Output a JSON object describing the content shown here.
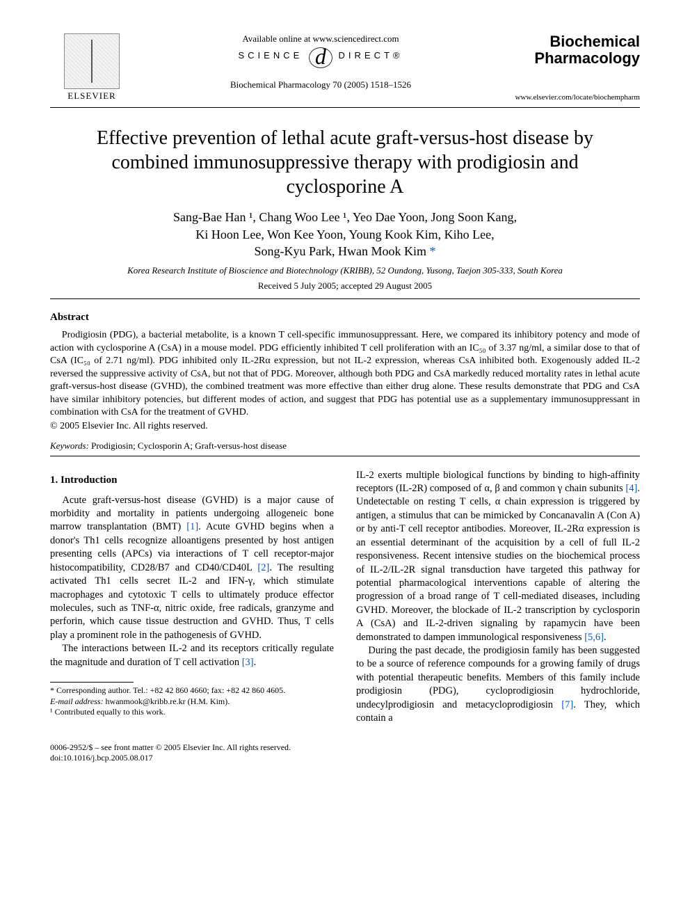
{
  "header": {
    "available_online": "Available online at www.sciencedirect.com",
    "sciencedirect_left": "SCIENCE",
    "sciencedirect_d": "d",
    "sciencedirect_right": "DIRECT®",
    "citation": "Biochemical Pharmacology 70 (2005) 1518–1526",
    "publisher_label": "ELSEVIER",
    "journal_line1": "Biochemical",
    "journal_line2": "Pharmacology",
    "journal_url": "www.elsevier.com/locate/biochempharm"
  },
  "title": "Effective prevention of lethal acute graft-versus-host disease by combined immunosuppressive therapy with prodigiosin and cyclosporine A",
  "authors": {
    "line1": "Sang-Bae Han ¹, Chang Woo Lee ¹, Yeo Dae Yoon, Jong Soon Kang,",
    "line2": "Ki Hoon Lee, Won Kee Yoon, Young Kook Kim, Kiho Lee,",
    "line3_prefix": "Song-Kyu Park, Hwan Mook Kim ",
    "corr_mark": "*"
  },
  "affiliation": "Korea Research Institute of Bioscience and Biotechnology (KRIBB), 52 Oundong, Yusong, Taejon 305-333, South Korea",
  "dates": "Received 5 July 2005; accepted 29 August 2005",
  "abstract_heading": "Abstract",
  "abstract_text": "Prodigiosin (PDG), a bacterial metabolite, is a known T cell-specific immunosuppressant. Here, we compared its inhibitory potency and mode of action with cyclosporine A (CsA) in a mouse model. PDG efficiently inhibited T cell proliferation with an IC₅₀ of 3.37 ng/ml, a similar dose to that of CsA (IC₅₀ of 2.71 ng/ml). PDG inhibited only IL-2Rα expression, but not IL-2 expression, whereas CsA inhibited both. Exogenously added IL-2 reversed the suppressive activity of CsA, but not that of PDG. Moreover, although both PDG and CsA markedly reduced mortality rates in lethal acute graft-versus-host disease (GVHD), the combined treatment was more effective than either drug alone. These results demonstrate that PDG and CsA have similar inhibitory potencies, but different modes of action, and suggest that PDG has potential use as a supplementary immunosuppressant in combination with CsA for the treatment of GVHD.",
  "copyright": "© 2005 Elsevier Inc. All rights reserved.",
  "keywords_label": "Keywords:",
  "keywords_text": " Prodigiosin; Cyclosporin A; Graft-versus-host disease",
  "intro_heading": "1. Introduction",
  "col_left": {
    "p1a": "Acute graft-versus-host disease (GVHD) is a major cause of morbidity and mortality in patients undergoing allogeneic bone marrow transplantation (BMT) ",
    "r1": "[1]",
    "p1b": ". Acute GVHD begins when a donor's Th1 cells recognize alloantigens presented by host antigen presenting cells (APCs) via interactions of T cell receptor-major histocompatibility, CD28/B7 and CD40/CD40L ",
    "r2": "[2]",
    "p1c": ". The resulting activated Th1 cells secret IL-2 and IFN-γ, which stimulate macrophages and cytotoxic T cells to ultimately produce effector molecules, such as TNF-α, nitric oxide, free radicals, granzyme and perforin, which cause tissue destruction and GVHD. Thus, T cells play a prominent role in the pathogenesis of GVHD.",
    "p2a": "The interactions between IL-2 and its receptors critically regulate the magnitude and duration of T cell activation ",
    "r3": "[3]",
    "p2b": "."
  },
  "col_right": {
    "p1a": "IL-2 exerts multiple biological functions by binding to high-affinity receptors (IL-2R) composed of α, β and common γ chain subunits ",
    "r4": "[4]",
    "p1b": ". Undetectable on resting T cells, α chain expression is triggered by antigen, a stimulus that can be mimicked by Concanavalin A (Con A) or by anti-T cell receptor antibodies. Moreover, IL-2Rα expression is an essential determinant of the acquisition by a cell of full IL-2 responsiveness. Recent intensive studies on the biochemical process of IL-2/IL-2R signal transduction have targeted this pathway for potential pharmacological interventions capable of altering the progression of a broad range of T cell-mediated diseases, including GVHD. Moreover, the blockade of IL-2 transcription by cyclosporin A (CsA) and IL-2-driven signaling by rapamycin have been demonstrated to dampen immunological responsiveness ",
    "r56": "[5,6]",
    "p1c": ".",
    "p2a": "During the past decade, the prodigiosin family has been suggested to be a source of reference compounds for a growing family of drugs with potential therapeutic benefits. Members of this family include prodigiosin (PDG), cycloprodigiosin hydrochloride, undecylprodigiosin and metacycloprodigiosin ",
    "r7": "[7]",
    "p2b": ". They, which contain a"
  },
  "footnotes": {
    "corr": "* Corresponding author. Tel.: +82 42 860 4660; fax: +82 42 860 4605.",
    "email_label": "E-mail address:",
    "email_value": " hwanmook@kribb.re.kr (H.M. Kim).",
    "fn1": "¹ Contributed equally to this work."
  },
  "footer": {
    "line1": "0006-2952/$ – see front matter © 2005 Elsevier Inc. All rights reserved.",
    "line2": "doi:10.1016/j.bcp.2005.08.017"
  },
  "colors": {
    "link": "#0b57c4",
    "text": "#000000",
    "background": "#ffffff"
  }
}
